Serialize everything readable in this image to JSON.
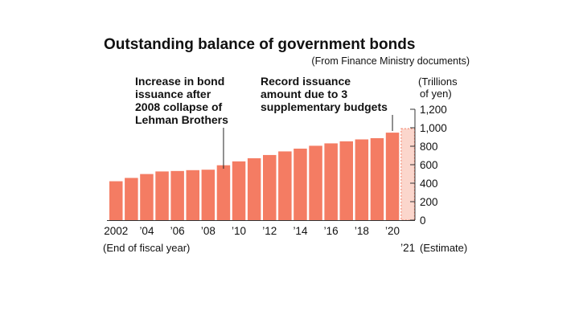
{
  "chart_data": {
    "type": "bar",
    "title": "Outstanding balance of government bonds",
    "source": "(From Finance Ministry documents)",
    "ylabel_lines": [
      "(Trillions",
      "of  yen)"
    ],
    "xlabel": "(End of fiscal year)",
    "x_note": "(Estimate)",
    "ylim": [
      0,
      1200
    ],
    "y_ticks": [
      0,
      200,
      400,
      600,
      800,
      "1,000",
      "1,200"
    ],
    "y_tick_values": [
      0,
      200,
      400,
      600,
      800,
      1000,
      1200
    ],
    "categories": [
      "2002",
      "2003",
      "2004",
      "2005",
      "2006",
      "2007",
      "2008",
      "2009",
      "2010",
      "2011",
      "2012",
      "2013",
      "2014",
      "2015",
      "2016",
      "2017",
      "2018",
      "2019",
      "2020",
      "2021"
    ],
    "values": [
      421,
      457,
      499,
      527,
      532,
      541,
      546,
      594,
      636,
      670,
      705,
      744,
      774,
      805,
      831,
      853,
      874,
      887,
      947,
      990
    ],
    "estimate_category": "2021",
    "x_tick_labels": [
      {
        "category": "2002",
        "label": "2002"
      },
      {
        "category": "2004",
        "label": "’04"
      },
      {
        "category": "2006",
        "label": "’06"
      },
      {
        "category": "2008",
        "label": "’08"
      },
      {
        "category": "2010",
        "label": "’10"
      },
      {
        "category": "2012",
        "label": "’12"
      },
      {
        "category": "2014",
        "label": "’14"
      },
      {
        "category": "2016",
        "label": "’16"
      },
      {
        "category": "2018",
        "label": "’18"
      },
      {
        "category": "2020",
        "label": "’20"
      },
      {
        "category": "2021",
        "label": "’21"
      }
    ],
    "annotations": [
      {
        "lines": [
          "Increase in bond",
          "issuance after",
          "2008 collapse of",
          "Lehman Brothers"
        ],
        "target": "2009"
      },
      {
        "lines": [
          "Record issuance",
          "amount due to 3",
          "supplementary budgets"
        ],
        "target": "2020"
      }
    ],
    "colors": {
      "bar": "#f47c63",
      "estimate_fill": "#fbd6cc",
      "estimate_border": "#f47c63",
      "text": "#111111"
    }
  }
}
